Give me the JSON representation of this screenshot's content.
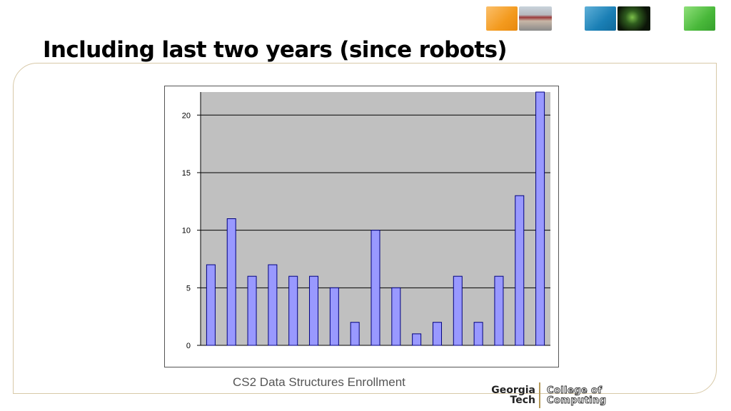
{
  "slide": {
    "title": "Including last two years (since robots)"
  },
  "header_thumbnails": [
    {
      "name": "orange-tile",
      "color": "#f39a1e"
    },
    {
      "name": "campus-photo",
      "color": "#9b3a3a"
    },
    {
      "name": "blue-tile",
      "color": "#1a7fb5"
    },
    {
      "name": "network-photo",
      "color": "#2f5d1e"
    },
    {
      "name": "green-tile",
      "color": "#49b83a"
    }
  ],
  "colors": {
    "plot_background": "#c0c0c0",
    "bar_fill": "#9999ff",
    "bar_stroke": "#000080",
    "frame_border": "#d8c9a8"
  },
  "chart_data": {
    "type": "bar",
    "title": "",
    "xlabel": "",
    "ylabel": "",
    "categories": [
      "",
      "",
      "",
      "",
      "",
      "",
      "",
      "",
      "",
      "",
      "",
      "",
      "",
      "",
      "",
      "",
      ""
    ],
    "values": [
      7,
      11,
      6,
      7,
      6,
      6,
      5,
      2,
      10,
      5,
      1,
      2,
      6,
      2,
      6,
      13,
      22
    ],
    "ylim": [
      0,
      22
    ],
    "yticks": [
      0,
      5,
      10,
      15,
      20
    ],
    "grid": true,
    "legend": "none"
  },
  "caption": "CS2 Data Structures Enrollment",
  "logo": {
    "gt_line1": "Georgia",
    "gt_line2": "Tech",
    "cc_line1": "College of",
    "cc_line2": "Computing"
  }
}
